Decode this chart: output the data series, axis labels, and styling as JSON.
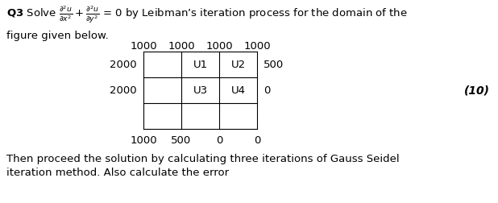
{
  "bg_color": "#ffffff",
  "eq_text": " = 0 by Leibman’s iteration process for the domain of the",
  "line2_text": "figure given below.",
  "footer_line1": "Then proceed the solution by calculating three iterations of Gauss Seidel",
  "footer_line2": "iteration method. Also calculate the error",
  "mark_text": "(10)",
  "top_labels": [
    "1000",
    "1000",
    "1000",
    "1000"
  ],
  "left_labels": [
    "2000",
    "2000"
  ],
  "bottom_labels": [
    "1000",
    "500",
    "0",
    "0"
  ],
  "right_labels": [
    "500",
    "0"
  ],
  "grid_cells": [
    [
      "",
      "U1",
      "U2"
    ],
    [
      "",
      "U3",
      "U4"
    ],
    [
      "",
      "",
      ""
    ]
  ],
  "font_size": 9.5,
  "font_size_mark": 10,
  "font_family": "DejaVu Sans"
}
